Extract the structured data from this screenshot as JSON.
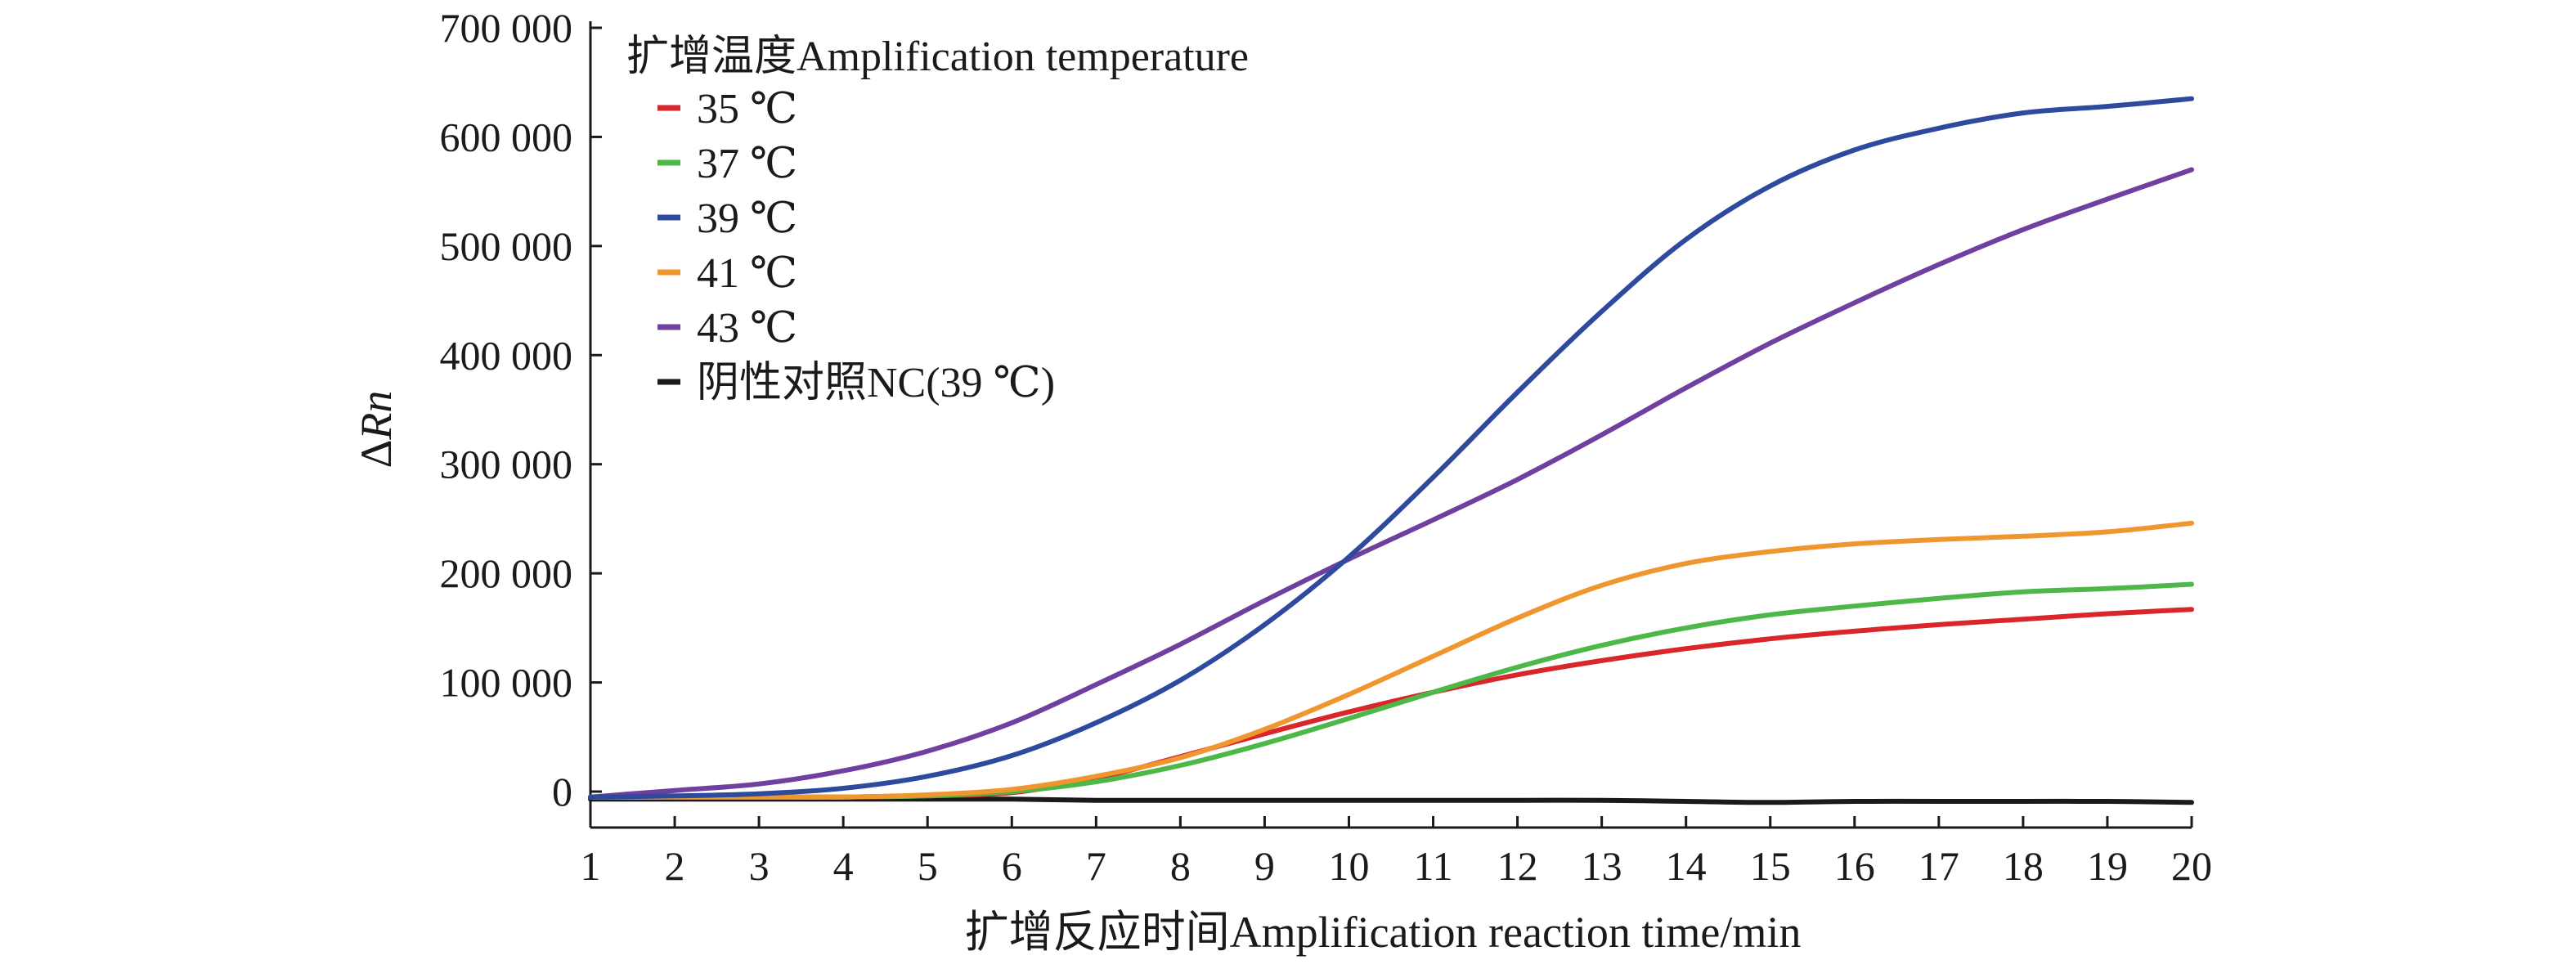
{
  "chart_data": {
    "type": "line",
    "xlabel": "扩增反应时间Amplification reaction time/min",
    "ylabel_prefix": "Δ",
    "ylabel_italic": "Rn",
    "xlim": [
      1,
      20
    ],
    "ylim": [
      0,
      700000
    ],
    "x_ticks": [
      1,
      2,
      3,
      4,
      5,
      6,
      7,
      8,
      9,
      10,
      11,
      12,
      13,
      14,
      15,
      16,
      17,
      18,
      19,
      20
    ],
    "y_ticks": [
      0,
      100000,
      200000,
      300000,
      400000,
      500000,
      600000,
      700000
    ],
    "y_tick_labels": [
      "0",
      "100 000",
      "200 000",
      "300 000",
      "400 000",
      "500 000",
      "600 000",
      "700 000"
    ],
    "grid": false,
    "legend": {
      "title": "扩增温度Amplification temperature",
      "placement": "top-left"
    },
    "x": [
      1,
      2,
      3,
      4,
      5,
      6,
      7,
      8,
      9,
      10,
      11,
      12,
      13,
      14,
      15,
      16,
      17,
      18,
      19,
      20
    ],
    "series": [
      {
        "name": "35 ℃",
        "color": "#d9262a",
        "values": [
          -5000,
          -5000,
          -5000,
          -5000,
          -4000,
          -1000,
          12000,
          32000,
          53000,
          73000,
          91000,
          107000,
          120000,
          131000,
          140000,
          147000,
          153000,
          158000,
          163000,
          167000
        ]
      },
      {
        "name": "37 ℃",
        "color": "#4db848",
        "values": [
          -5000,
          -5000,
          -5000,
          -5000,
          -4000,
          0,
          9000,
          24000,
          44000,
          67000,
          91000,
          114000,
          134000,
          150000,
          162000,
          170000,
          177000,
          183000,
          186000,
          190000
        ]
      },
      {
        "name": "39 ℃",
        "color": "#2e4a9e",
        "values": [
          -5000,
          -4000,
          -2000,
          3000,
          14000,
          33000,
          63000,
          102000,
          153000,
          215000,
          288000,
          366000,
          440000,
          506000,
          555000,
          588000,
          608000,
          622000,
          628000,
          635000
        ]
      },
      {
        "name": "41 ℃",
        "color": "#f0962e",
        "values": [
          -5000,
          -5000,
          -5000,
          -5000,
          -3000,
          2000,
          14000,
          31000,
          57000,
          89000,
          124000,
          159000,
          189000,
          209000,
          220000,
          227000,
          231000,
          234000,
          238000,
          246000
        ]
      },
      {
        "name": "43 ℃",
        "color": "#7040a0",
        "values": [
          -5000,
          1000,
          7000,
          19000,
          37000,
          63000,
          98000,
          135000,
          175000,
          213000,
          249000,
          286000,
          327000,
          370000,
          411000,
          448000,
          483000,
          515000,
          543000,
          570000
        ]
      },
      {
        "name": "阴性对照NC(39 ℃)",
        "color": "#1a1a1a",
        "values": [
          -7000,
          -7000,
          -7000,
          -7000,
          -7000,
          -7000,
          -8000,
          -8000,
          -8000,
          -8000,
          -8000,
          -8000,
          -8000,
          -9000,
          -10000,
          -9000,
          -9000,
          -9000,
          -9000,
          -10000
        ]
      }
    ]
  }
}
